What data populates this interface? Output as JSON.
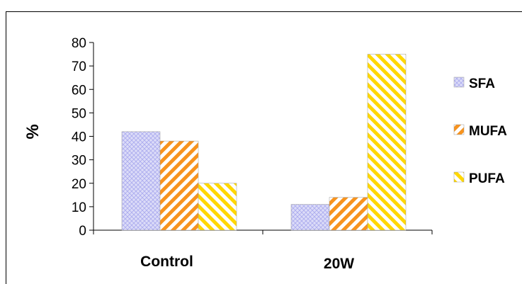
{
  "chart_data": {
    "type": "bar",
    "title": "",
    "xlabel": "",
    "ylabel": "%",
    "ylim": [
      0,
      80
    ],
    "yticks": [
      0,
      10,
      20,
      30,
      40,
      50,
      60,
      70,
      80
    ],
    "categories": [
      "Control",
      "20W"
    ],
    "series": [
      {
        "name": "SFA",
        "values": [
          42,
          11
        ],
        "color": "#c8c8f4",
        "pattern": "crosshatch"
      },
      {
        "name": "MUFA",
        "values": [
          38,
          14
        ],
        "color": "#f7931e",
        "pattern": "diagonal-up"
      },
      {
        "name": "PUFA",
        "values": [
          20,
          75
        ],
        "color": "#ffd700",
        "pattern": "diagonal-down"
      }
    ],
    "grid": false,
    "legend": "right"
  }
}
